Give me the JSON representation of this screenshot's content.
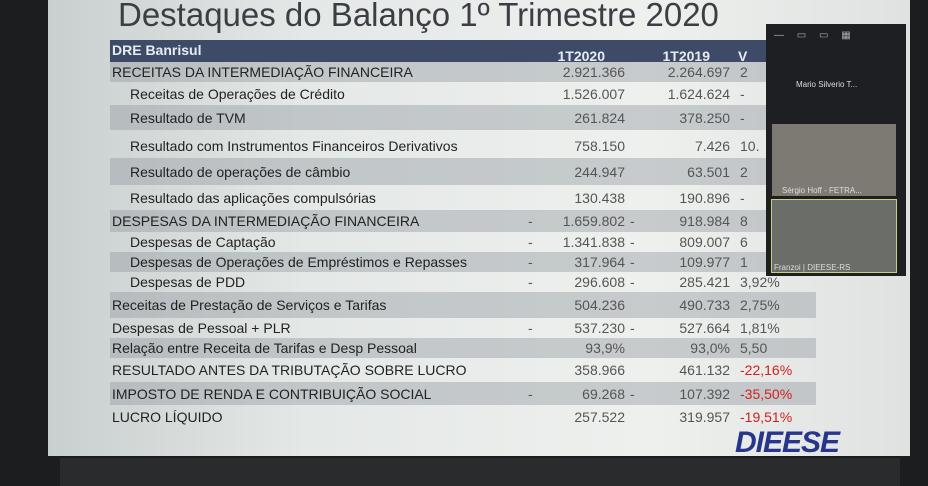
{
  "slide": {
    "title": "Destaques do Balanço 1º Trimestre 2020",
    "header": {
      "label": "DRE Banrisul",
      "col1": "1T2020",
      "col2": "1T2019",
      "col3": "V"
    },
    "rows": [
      {
        "label": "RECEITAS DA INTERMEDIAÇÃO FINANCEIRA",
        "v1": "2.921.366",
        "v2": "2.264.697",
        "v3": "2",
        "neg1": "",
        "neg2": ""
      },
      {
        "label": "Receitas de Operações de Crédito",
        "v1": "1.526.007",
        "v2": "1.624.624",
        "v3": "-",
        "neg1": "",
        "neg2": ""
      },
      {
        "label": "Resultado de TVM",
        "v1": "261.824",
        "v2": "378.250",
        "v3": "-",
        "neg1": "",
        "neg2": ""
      },
      {
        "label": "Resultado com Instrumentos Financeiros Derivativos",
        "v1": "758.150",
        "v2": "7.426",
        "v3": "10.",
        "neg1": "",
        "neg2": ""
      },
      {
        "label": "Resultado de operações de câmbio",
        "v1": "244.947",
        "v2": "63.501",
        "v3": "2",
        "neg1": "",
        "neg2": ""
      },
      {
        "label": "Resultado das aplicações compulsórias",
        "v1": "130.438",
        "v2": "190.896",
        "v3": "-",
        "neg1": "",
        "neg2": ""
      },
      {
        "label": "DESPESAS DA INTERMEDIAÇÃO FINANCEIRA",
        "v1": "1.659.802",
        "v2": "918.984",
        "v3": "8",
        "neg1": "-",
        "neg2": "-"
      },
      {
        "label": "Despesas de Captação",
        "v1": "1.341.838",
        "v2": "809.007",
        "v3": "6",
        "neg1": "-",
        "neg2": "-"
      },
      {
        "label": "Despesas de Operações de Empréstimos e Repasses",
        "v1": "317.964",
        "v2": "109.977",
        "v3": "1",
        "neg1": "-",
        "neg2": "-"
      },
      {
        "label": "Despesas de PDD",
        "v1": "296.608",
        "v2": "285.421",
        "v3": "3,92%",
        "neg1": "-",
        "neg2": "-"
      },
      {
        "label": "Receitas de Prestação de Serviços e Tarifas",
        "v1": "504.236",
        "v2": "490.733",
        "v3": "2,75%",
        "neg1": "",
        "neg2": ""
      },
      {
        "label": "Despesas de Pessoal + PLR",
        "v1": "537.230",
        "v2": "527.664",
        "v3": "1,81%",
        "neg1": "-",
        "neg2": "-"
      },
      {
        "label": "Relação entre Receita de Tarifas e Desp Pessoal",
        "v1": "93,9%",
        "v2": "93,0%",
        "v3": "5,50",
        "neg1": "",
        "neg2": ""
      },
      {
        "label": "RESULTADO ANTES DA TRIBUTAÇÃO SOBRE LUCRO",
        "v1": "358.966",
        "v2": "461.132",
        "v3": "-22,16%",
        "neg1": "",
        "neg2": ""
      },
      {
        "label": "IMPOSTO DE RENDA E CONTRIBUIÇÃO SOCIAL",
        "v1": "69.268",
        "v2": "107.392",
        "v3": "-35,50%",
        "neg1": "-",
        "neg2": "-"
      },
      {
        "label": "LUCRO LÍQUIDO",
        "v1": "257.522",
        "v2": "319.957",
        "v3": "-19,51%",
        "neg1": "",
        "neg2": ""
      }
    ],
    "logo": "DIEESE",
    "negative_color": "#d02020",
    "header_color": "#3e4b68"
  },
  "meeting": {
    "participants": [
      "Mario Silverio T...",
      "Sérgio Hoff - FETRA...",
      "Franzoi | DIEESE-RS"
    ]
  }
}
